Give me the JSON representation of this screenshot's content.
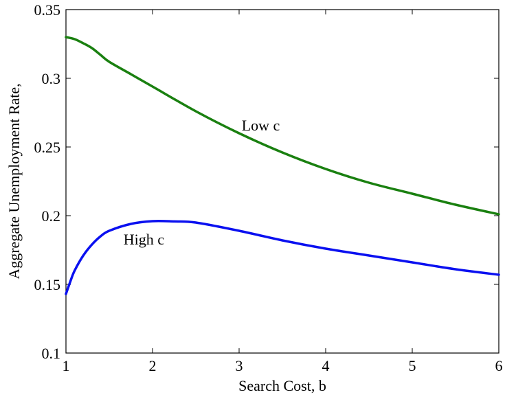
{
  "chart_data": {
    "type": "line",
    "title": "",
    "xlabel": "Search Cost, b",
    "ylabel": "Aggregate Unemployment Rate,",
    "xlim": [
      1,
      6
    ],
    "ylim": [
      0.1,
      0.35
    ],
    "xticks": [
      1,
      2,
      3,
      4,
      5,
      6
    ],
    "xtick_labels": [
      "1",
      "2",
      "3",
      "4",
      "5",
      "6"
    ],
    "yticks": [
      0.1,
      0.15,
      0.2,
      0.25,
      0.3,
      0.35
    ],
    "ytick_labels": [
      "0.1",
      "0.15",
      "0.2",
      "0.25",
      "0.3",
      "0.35"
    ],
    "grid": false,
    "series": [
      {
        "name": "Low c",
        "color": "#1a8010",
        "x": [
          1.0,
          1.1,
          1.2,
          1.3,
          1.4,
          1.5,
          1.75,
          2.0,
          2.5,
          3.0,
          3.5,
          4.0,
          4.5,
          5.0,
          5.5,
          6.0
        ],
        "y": [
          0.33,
          0.3285,
          0.3255,
          0.322,
          0.317,
          0.312,
          0.303,
          0.294,
          0.276,
          0.26,
          0.246,
          0.234,
          0.224,
          0.216,
          0.208,
          0.201
        ]
      },
      {
        "name": "High c",
        "color": "#0a10f0",
        "x": [
          1.0,
          1.05,
          1.1,
          1.2,
          1.3,
          1.4,
          1.5,
          1.75,
          2.0,
          2.25,
          2.5,
          3.0,
          3.5,
          4.0,
          4.5,
          5.0,
          5.5,
          6.0
        ],
        "y": [
          0.143,
          0.152,
          0.16,
          0.171,
          0.179,
          0.185,
          0.189,
          0.194,
          0.196,
          0.1958,
          0.195,
          0.189,
          0.182,
          0.176,
          0.171,
          0.166,
          0.161,
          0.157
        ]
      }
    ],
    "annotations": [
      {
        "text": "Low c",
        "x": 3.25,
        "y": 0.266
      },
      {
        "text": "High c",
        "x": 1.9,
        "y": 0.183
      }
    ]
  }
}
